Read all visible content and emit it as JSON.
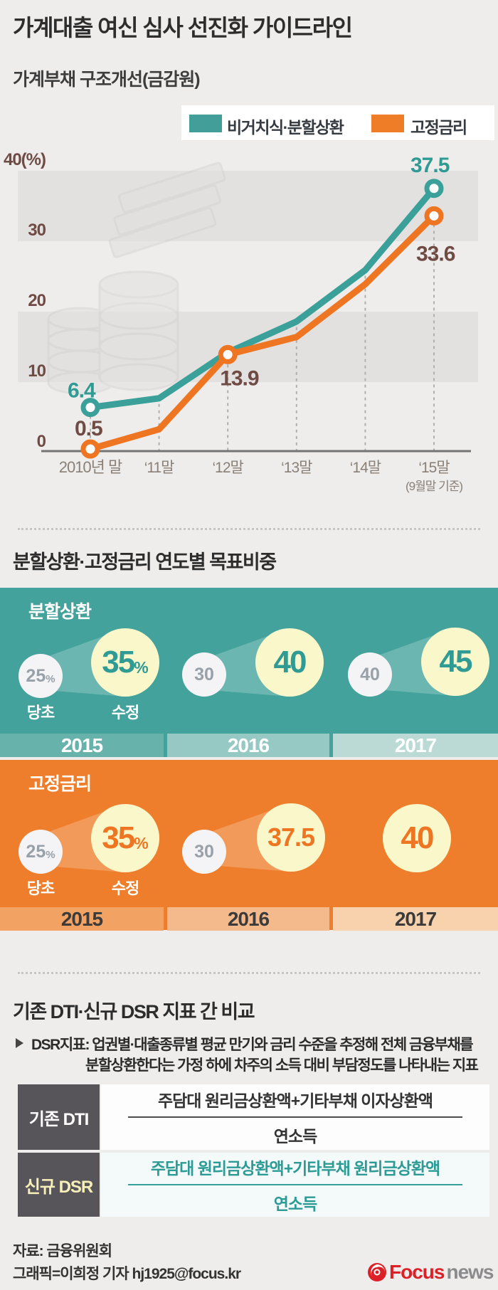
{
  "header": {
    "title": "가계대출 여신 심사 선진화 가이드라인",
    "subtitle": "가계부채 구조개선(금감원)"
  },
  "chart": {
    "legend": [
      {
        "label": "비거치식·분할상환",
        "color": "#419e98"
      },
      {
        "label": "고정금리",
        "color": "#ef7d28"
      }
    ],
    "y_ticks": [
      "40(%)",
      "30",
      "20",
      "10",
      "0"
    ],
    "x_ticks": [
      "2010년 말",
      "‘11말",
      "‘12말",
      "‘13말",
      "‘14말",
      "‘15말"
    ],
    "x_note": "(9월말 기준)"
  },
  "chart_data": {
    "type": "line",
    "title": "가계부채 구조개선(금감원)",
    "unit": "%",
    "ylim": [
      0,
      40
    ],
    "categories": [
      "2010년 말",
      "‘11말",
      "‘12말",
      "‘13말",
      "‘14말",
      "‘15말(9월말 기준)"
    ],
    "grid": "horizontal-bands",
    "legend_position": "top-right",
    "series": [
      {
        "name": "비거치식·분할상환",
        "color": "#3aa099",
        "label_color": "#2f9b94",
        "values": [
          6.4,
          7.7,
          14.2,
          18.6,
          25.9,
          37.5
        ],
        "marker_indices": [
          0,
          5
        ]
      },
      {
        "name": "고정금리",
        "color": "#ee7522",
        "label_color": "#6f4b44",
        "values": [
          0.5,
          3.3,
          13.9,
          16.4,
          23.9,
          33.6
        ],
        "marker_indices": [
          0,
          2,
          5
        ]
      }
    ],
    "point_labels": [
      {
        "series": 0,
        "index": 0,
        "text": "6.4"
      },
      {
        "series": 1,
        "index": 0,
        "text": "0.5"
      },
      {
        "series": 1,
        "index": 2,
        "text": "13.9"
      },
      {
        "series": 0,
        "index": 5,
        "text": "37.5"
      },
      {
        "series": 1,
        "index": 5,
        "text": "33.6"
      }
    ]
  },
  "targets": {
    "section_title": "분할상환·고정금리 연도별 목표비중",
    "labels": {
      "initial": "당초",
      "revised": "수정"
    },
    "blocks": [
      {
        "name": "분할상환",
        "color": "#43a29b",
        "groups": [
          {
            "year": "2015",
            "initial": "25",
            "initial_suffix": "%",
            "revised": "35",
            "revised_suffix": "%"
          },
          {
            "year": "2016",
            "initial": "30",
            "revised": "40"
          },
          {
            "year": "2017",
            "initial": "40",
            "revised": "45"
          }
        ]
      },
      {
        "name": "고정금리",
        "color": "#ef7e2c",
        "groups": [
          {
            "year": "2015",
            "initial": "25",
            "initial_suffix": "%",
            "revised": "35",
            "revised_suffix": "%"
          },
          {
            "year": "2016",
            "initial": "30",
            "revised": "37.5"
          },
          {
            "year": "2017",
            "revised": "40"
          }
        ]
      }
    ]
  },
  "comparison": {
    "title": "기존 DTI·신규 DSR 지표 간 비교",
    "note": {
      "line1": "DSR지표: 업권별·대출종류별 평균 만기와 금리 수준을 추정해 전체 금융부채를",
      "line2": "분할상환한다는 가정 하에 차주의 소득 대비 부담정도를 나타내는 지표"
    },
    "rows": [
      {
        "label": "기존 DTI",
        "numerator": "주담대 원리금상환액+기타부채 이자상환액",
        "denominator": "연소득"
      },
      {
        "label": "신규 DSR",
        "numerator": "주담대 원리금상환액+기타부채 원리금상환액",
        "denominator": "연소득"
      }
    ]
  },
  "footer": {
    "source": "자료: 금융위원회",
    "credit": "그래픽=이희정 기자 hj1925@focus.kr",
    "logo": {
      "brand": "Focus",
      "suffix": "news"
    }
  }
}
